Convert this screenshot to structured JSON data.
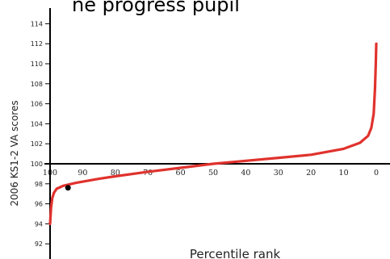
{
  "chart_data": {
    "type": "line",
    "title": "",
    "title_fragment_visible": "ne progress pupil",
    "xlabel": "Percentile rank",
    "ylabel": "2006 KS1-2 VA scores",
    "x_reversed": true,
    "xlim": [
      100,
      0
    ],
    "ylim": [
      91,
      115
    ],
    "x_ticks": [
      "100",
      "90",
      "80",
      "70",
      "60",
      "50",
      "40",
      "30",
      "20",
      "10",
      "0"
    ],
    "y_ticks": [
      "92",
      "94",
      "96",
      "98",
      "100",
      "102",
      "104",
      "106",
      "108",
      "110",
      "112",
      "114"
    ],
    "reference_line_y": 100,
    "grid": false,
    "legend": "none",
    "series": [
      {
        "color": "#e0322d",
        "points": [
          [
            100,
            94.0
          ],
          [
            99.7,
            95.6
          ],
          [
            99.3,
            96.6
          ],
          [
            98.8,
            97.1
          ],
          [
            98,
            97.5
          ],
          [
            96,
            97.8
          ],
          [
            92,
            98.1
          ],
          [
            85,
            98.5
          ],
          [
            80,
            98.75
          ],
          [
            70,
            99.2
          ],
          [
            60,
            99.6
          ],
          [
            50,
            100.0
          ],
          [
            40,
            100.3
          ],
          [
            30,
            100.6
          ],
          [
            20,
            100.9
          ],
          [
            10,
            101.5
          ],
          [
            5,
            102.1
          ],
          [
            2.5,
            102.8
          ],
          [
            1.5,
            103.6
          ],
          [
            0.8,
            105
          ],
          [
            0.4,
            107.5
          ],
          [
            0.15,
            110
          ],
          [
            0,
            112
          ]
        ]
      }
    ],
    "highlight_point": {
      "x": 94.5,
      "y": 97.6,
      "color": "#000000"
    }
  }
}
